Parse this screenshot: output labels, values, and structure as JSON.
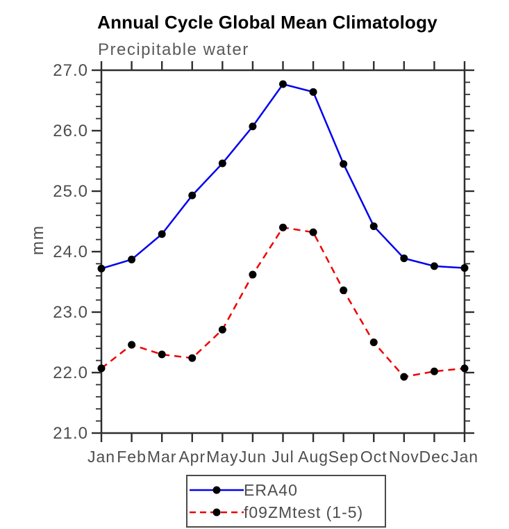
{
  "chart_data": {
    "type": "line",
    "title": "Annual Cycle Global Mean Climatology",
    "subtitle": "Precipitable water",
    "ylabel": "mm",
    "xlabel": "",
    "x_tick_labels": [
      "Jan",
      "Feb",
      "Mar",
      "Apr",
      "May",
      "Jun",
      "Jul",
      "Aug",
      "Sep",
      "Oct",
      "Nov",
      "Dec",
      "Jan"
    ],
    "ylim": [
      21.0,
      27.0
    ],
    "y_major_step": 1.0,
    "y_minor_step": 0.2,
    "y_tick_labels": [
      "21.0",
      "22.0",
      "23.0",
      "24.0",
      "25.0",
      "26.0",
      "27.0"
    ],
    "grid": false,
    "legend_position": "bottom-center",
    "axis_color": "#2e2e2e",
    "label_color": "#4d4d4d",
    "marker_color": "#000000",
    "series": [
      {
        "name": "ERA40",
        "color": "#0000ee",
        "line_style": "solid",
        "marker": "circle",
        "values": [
          23.72,
          23.87,
          24.29,
          24.93,
          25.46,
          26.07,
          26.77,
          26.64,
          25.45,
          24.42,
          23.89,
          23.76,
          23.73
        ]
      },
      {
        "name": "f09ZMtest (1-5)",
        "color": "#ee0000",
        "line_style": "dashed",
        "marker": "circle",
        "values": [
          22.07,
          22.46,
          22.3,
          22.24,
          22.71,
          23.62,
          24.4,
          24.32,
          23.36,
          22.5,
          21.93,
          22.02,
          22.07
        ]
      }
    ]
  }
}
